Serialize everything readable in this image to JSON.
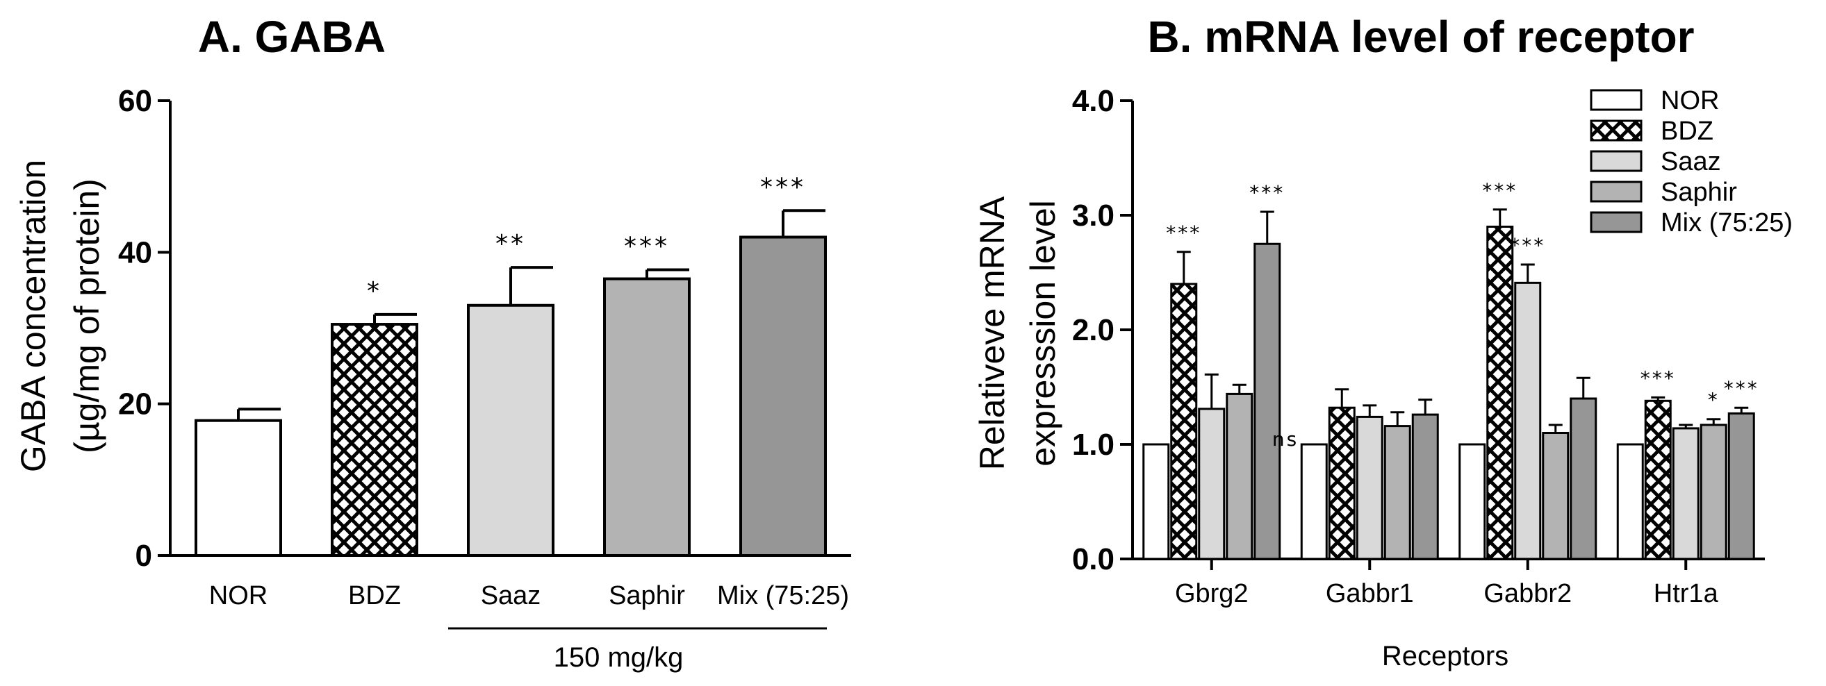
{
  "palette": {
    "NOR": "#ffffff",
    "BDZ": "hatch",
    "Saaz": "#d9d9d9",
    "Saphir": "#b3b3b3",
    "Mix (75:25)": "#969696"
  },
  "chart_data": [
    {
      "type": "bar",
      "title": "A. GABA",
      "xlabel": "150 mg/kg",
      "ylabel": "GABA concentration",
      "ylabel_line2": "(µg/mg of protein)",
      "ylim": [
        0,
        60
      ],
      "yticks": [
        "0",
        "20",
        "40",
        "60"
      ],
      "categories": [
        "NOR",
        "BDZ",
        "Saaz",
        "Saphir",
        "Mix (75:25)"
      ],
      "values": [
        17.8,
        30.5,
        33.0,
        36.5,
        42.0
      ],
      "errors": [
        1.5,
        1.3,
        5.0,
        1.2,
        3.5
      ],
      "significance": [
        "",
        "*",
        "**",
        "***",
        "***"
      ]
    },
    {
      "type": "bar",
      "title": "B. mRNA level of receptor",
      "xlabel": "Receptors",
      "ylabel": "Relativeve mRNA",
      "ylabel_line2": "expresssion level",
      "ylim": [
        0,
        4.0
      ],
      "yticks": [
        "0.0",
        "1.0",
        "2.0",
        "3.0",
        "4.0"
      ],
      "categories": [
        "Gbrg2",
        "Gabbr1",
        "Gabbr2",
        "Htr1a"
      ],
      "legend": [
        "NOR",
        "BDZ",
        "Saaz",
        "Saphir",
        "Mix (75:25)"
      ],
      "series": [
        {
          "name": "NOR",
          "values": [
            1.0,
            1.0,
            1.0,
            1.0
          ],
          "errors": [
            0,
            0,
            0,
            0
          ],
          "significance": [
            "",
            "ns",
            "",
            ""
          ]
        },
        {
          "name": "BDZ",
          "values": [
            2.4,
            1.32,
            2.9,
            1.38
          ],
          "errors": [
            0.28,
            0.16,
            0.15,
            0.03
          ],
          "significance": [
            "***",
            "",
            "***",
            "***"
          ]
        },
        {
          "name": "Saaz",
          "values": [
            1.31,
            1.24,
            2.41,
            1.14
          ],
          "errors": [
            0.3,
            0.1,
            0.16,
            0.03
          ],
          "significance": [
            "",
            "",
            "***",
            ""
          ]
        },
        {
          "name": "Saphir",
          "values": [
            1.44,
            1.16,
            1.1,
            1.17
          ],
          "errors": [
            0.08,
            0.12,
            0.07,
            0.05
          ],
          "significance": [
            "",
            "",
            "",
            "*"
          ]
        },
        {
          "name": "Mix (75:25)",
          "values": [
            2.75,
            1.26,
            1.4,
            1.27
          ],
          "errors": [
            0.28,
            0.13,
            0.18,
            0.05
          ],
          "significance": [
            "***",
            "",
            "",
            "***"
          ]
        }
      ]
    }
  ]
}
